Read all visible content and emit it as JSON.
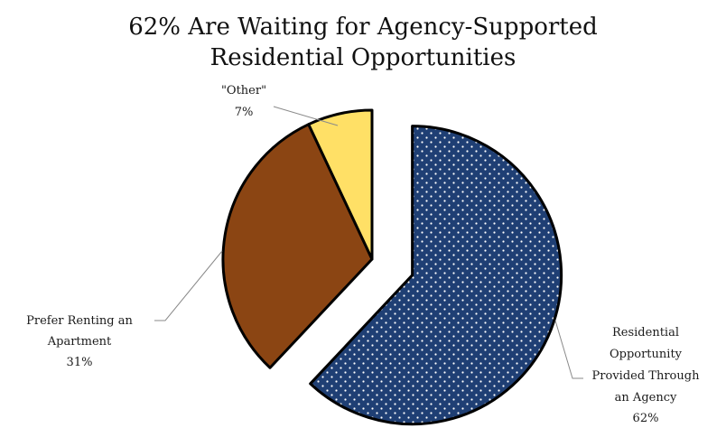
{
  "chart_data": {
    "type": "pie",
    "title_lines": [
      "62% Are Waiting for Agency-Supported",
      "Residential Opportunities"
    ],
    "slices": [
      {
        "id": "agency",
        "label_lines": [
          "Residential",
          "Opportunity",
          "Provided Through",
          "an Agency"
        ],
        "percent_label": "62%",
        "value": 62,
        "color": "#1f3f74",
        "pattern": "dots",
        "exploded": true
      },
      {
        "id": "renting",
        "label_lines": [
          "Prefer Renting an",
          "Apartment"
        ],
        "percent_label": "31%",
        "value": 31,
        "color": "#8b4513",
        "pattern": "none",
        "exploded": false
      },
      {
        "id": "other",
        "label_lines": [
          "\"Other\""
        ],
        "percent_label": "7%",
        "value": 7,
        "color": "#ffe066",
        "pattern": "none",
        "exploded": false
      }
    ],
    "legend": "none"
  }
}
